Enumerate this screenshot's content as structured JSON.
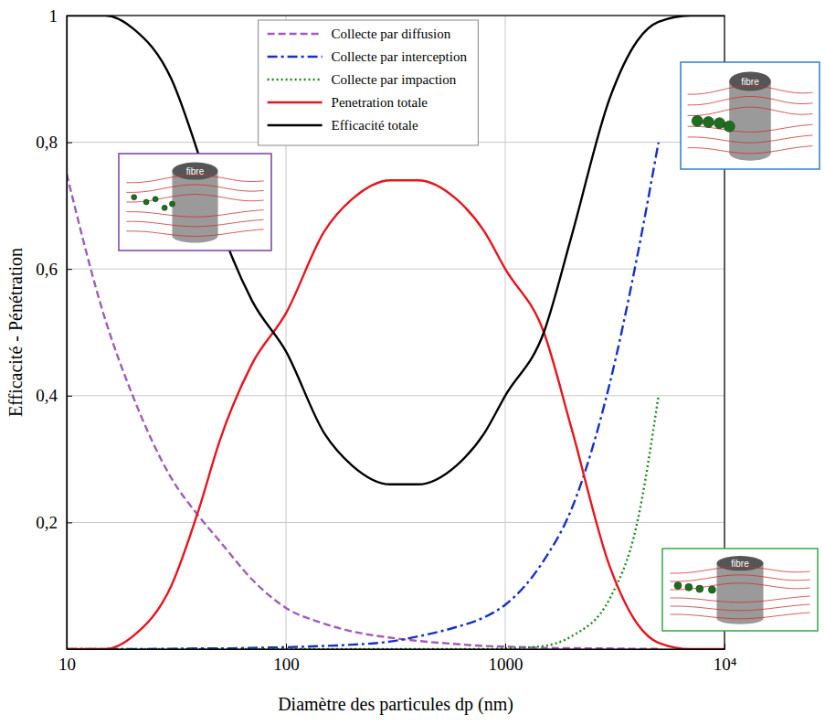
{
  "chart_data": {
    "type": "line",
    "xlabel": "Diamètre des particules dp (nm)",
    "ylabel": "Efficacité - Pénétration",
    "x": [
      10,
      15,
      20,
      30,
      40,
      50,
      70,
      100,
      150,
      200,
      300,
      400,
      600,
      800,
      1000,
      1500,
      2000,
      3000,
      4000,
      5000,
      7000,
      10000
    ],
    "xlim": [
      10,
      10000
    ],
    "ylim": [
      0,
      1
    ],
    "xticks": [
      10,
      100,
      1000,
      {
        "value": 10000,
        "label": "10⁴"
      }
    ],
    "yticks": [
      {
        "value": 0.2,
        "label": "0,2"
      },
      {
        "value": 0.4,
        "label": "0,4"
      },
      {
        "value": 0.6,
        "label": "0,6"
      },
      {
        "value": 0.8,
        "label": "0,8"
      },
      1
    ],
    "log": "x",
    "grid": true,
    "legend": "upper center",
    "annotations": [
      "fibre",
      "fibre",
      "fibre"
    ],
    "series": [
      {
        "name": "Collecte par diffusion",
        "color": "#a05cb8",
        "line_style": "dashed",
        "values": [
          0.75,
          0.52,
          0.4,
          0.27,
          0.21,
          0.17,
          0.11,
          0.065,
          0.04,
          0.028,
          0.018,
          0.013,
          0.008,
          0.005,
          0.004,
          0.002,
          0.0015,
          0.001,
          0.0005,
          0.0003,
          null,
          null
        ]
      },
      {
        "name": "Collecte par interception",
        "color": "#1530c8",
        "line_style": "dashdot",
        "values": [
          0,
          0,
          0,
          0.0005,
          0.001,
          0.001,
          0.002,
          0.003,
          0.005,
          0.007,
          0.012,
          0.02,
          0.035,
          0.05,
          0.07,
          0.14,
          0.22,
          0.42,
          0.62,
          0.8,
          null,
          null
        ]
      },
      {
        "name": "Collecte par impaction",
        "color": "#1a8a1a",
        "line_style": "dotted",
        "values": [
          0,
          0,
          0,
          0,
          0,
          0,
          0,
          0,
          0,
          0,
          0,
          0,
          0,
          0,
          0.001,
          0.005,
          0.02,
          0.08,
          0.2,
          0.4,
          null,
          null
        ]
      },
      {
        "name": "Penetration totale",
        "color": "#e8141c",
        "line_style": "solid",
        "values": [
          0,
          0,
          0.02,
          0.1,
          0.22,
          0.33,
          0.45,
          0.53,
          0.66,
          0.71,
          0.74,
          0.74,
          0.71,
          0.66,
          0.6,
          0.5,
          0.35,
          0.13,
          0.04,
          0.01,
          0,
          0
        ]
      },
      {
        "name": "Efficacité totale",
        "color": "#000000",
        "line_style": "solid",
        "values": [
          1,
          1,
          0.98,
          0.9,
          0.78,
          0.67,
          0.55,
          0.47,
          0.34,
          0.29,
          0.26,
          0.26,
          0.29,
          0.34,
          0.4,
          0.5,
          0.65,
          0.87,
          0.96,
          0.99,
          1,
          1
        ]
      }
    ]
  }
}
